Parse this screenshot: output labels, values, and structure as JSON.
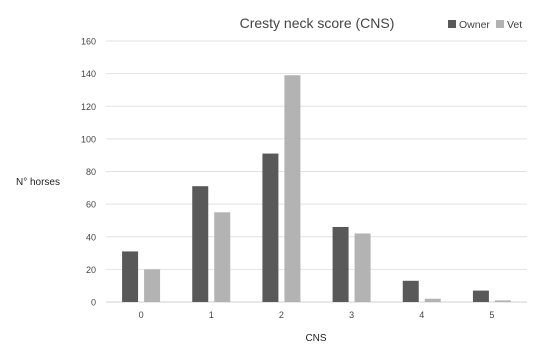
{
  "chart_data": {
    "type": "bar",
    "title": "Cresty neck score (CNS)",
    "xlabel": "CNS",
    "ylabel": "N° horses",
    "categories": [
      "0",
      "1",
      "2",
      "3",
      "4",
      "5"
    ],
    "series": [
      {
        "name": "Owner",
        "values": [
          31,
          71,
          91,
          46,
          13,
          7
        ],
        "color": "#595959"
      },
      {
        "name": "Vet",
        "values": [
          20,
          55,
          139,
          42,
          2,
          1
        ],
        "color": "#b3b3b3"
      }
    ],
    "ylim": [
      0,
      160
    ],
    "yticks": [
      0,
      20,
      40,
      60,
      80,
      100,
      120,
      140,
      160
    ],
    "grid": true,
    "legend_position": "top-right"
  }
}
